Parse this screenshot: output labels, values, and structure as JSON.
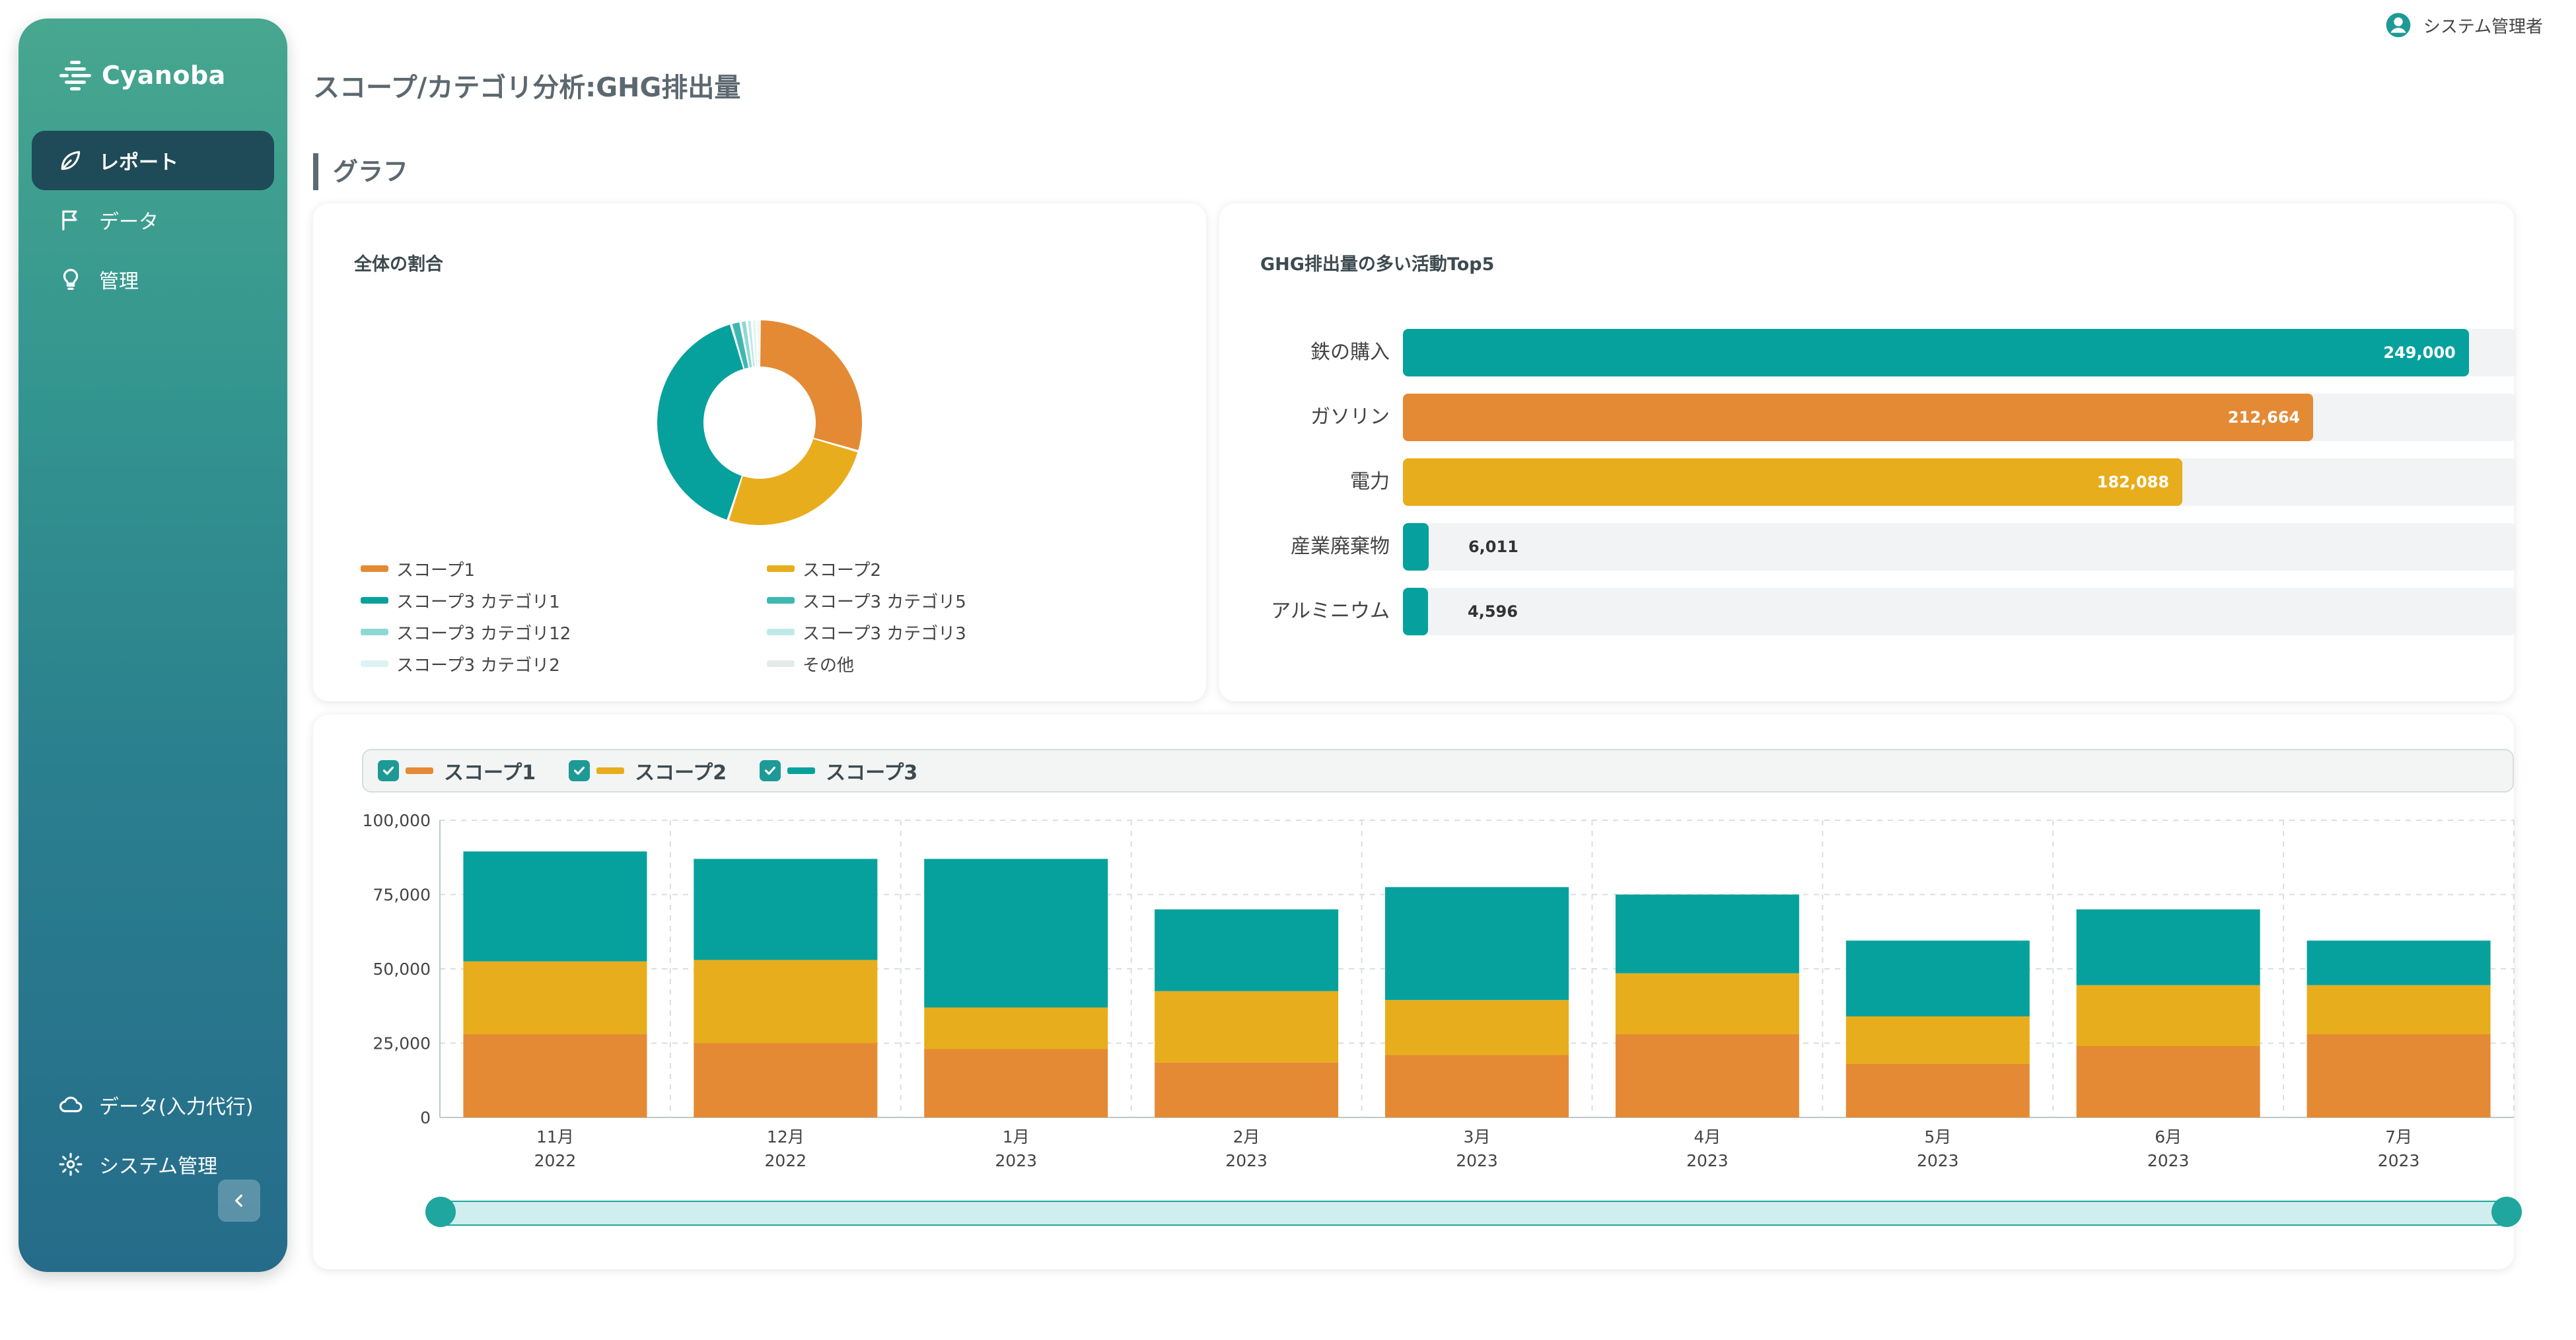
{
  "app": {
    "brand": "Cyanoba"
  },
  "header": {
    "user": "システム管理者"
  },
  "nav": {
    "items": [
      {
        "label": "レポート",
        "icon": "leaf-icon",
        "active": true
      },
      {
        "label": "データ",
        "icon": "flag-icon",
        "active": false
      },
      {
        "label": "管理",
        "icon": "lightbulb-icon",
        "active": false
      }
    ],
    "bottom": [
      {
        "label": "データ(入力代行)",
        "icon": "cloud-icon"
      },
      {
        "label": "システム管理",
        "icon": "gear-icon"
      }
    ]
  },
  "page": {
    "title": "スコープ/カテゴリ分析:GHG排出量",
    "section": "グラフ"
  },
  "donut": {
    "title": "全体の割合",
    "legend": [
      {
        "label": "スコープ1",
        "color": "#e48a35"
      },
      {
        "label": "スコープ2",
        "color": "#e8ad1c"
      },
      {
        "label": "スコープ3 カテゴリ1",
        "color": "#06a19d"
      },
      {
        "label": "スコープ3 カテゴリ5",
        "color": "#3fb8b2"
      },
      {
        "label": "スコープ3 カテゴリ12",
        "color": "#8ed8d4"
      },
      {
        "label": "スコープ3 カテゴリ3",
        "color": "#bfe9e6"
      },
      {
        "label": "スコープ3 カテゴリ2",
        "color": "#dcf3f1"
      },
      {
        "label": "その他",
        "color": "#e6eaeb"
      }
    ]
  },
  "top5": {
    "title": "GHG排出量の多い活動Top5"
  },
  "stack": {
    "legend": [
      {
        "label": "スコープ1",
        "color": "#e48a35"
      },
      {
        "label": "スコープ2",
        "color": "#e8ad1c"
      },
      {
        "label": "スコープ3",
        "color": "#06a19d"
      }
    ]
  },
  "chart_data": [
    {
      "type": "pie",
      "title": "全体の割合",
      "categories": [
        "スコープ1",
        "スコープ2",
        "スコープ3 カテゴリ1",
        "スコープ3 カテゴリ5",
        "スコープ3 カテゴリ12",
        "スコープ3 カテゴリ3",
        "スコープ3 カテゴリ2",
        "その他"
      ],
      "values": [
        29.5,
        25.5,
        40.5,
        1.5,
        1.0,
        0.8,
        0.7,
        0.5
      ],
      "colors": [
        "#e48a35",
        "#e8ad1c",
        "#06a19d",
        "#3fb8b2",
        "#8ed8d4",
        "#bfe9e6",
        "#dcf3f1",
        "#e6eaeb"
      ],
      "hole": 0.55
    },
    {
      "type": "bar",
      "orientation": "horizontal",
      "title": "GHG排出量の多い活動Top5",
      "categories": [
        "鉄の購入",
        "ガソリン",
        "電力",
        "産業廃棄物",
        "アルミニウム"
      ],
      "values": [
        249000,
        212664,
        182088,
        6011,
        4596
      ],
      "labels": [
        "249,000",
        "212,664",
        "182,088",
        "6,011",
        "4,596"
      ],
      "colors": [
        "#06a19d",
        "#e48a35",
        "#e8ad1c",
        "#06a19d",
        "#06a19d"
      ],
      "xlim": [
        0,
        260000
      ]
    },
    {
      "type": "bar",
      "stacked": true,
      "categories": [
        "11月|2022",
        "12月|2022",
        "1月|2023",
        "2月|2023",
        "3月|2023",
        "4月|2023",
        "5月|2023",
        "6月|2023",
        "7月|2023"
      ],
      "series": [
        {
          "name": "スコープ1",
          "color": "#e48a35",
          "values": [
            28000,
            25000,
            23000,
            18500,
            21000,
            28000,
            18000,
            24000,
            28000
          ]
        },
        {
          "name": "スコープ2",
          "color": "#e8ad1c",
          "values": [
            24500,
            28000,
            14000,
            24000,
            18500,
            20500,
            16000,
            20500,
            16500
          ]
        },
        {
          "name": "スコープ3",
          "color": "#06a19d",
          "values": [
            37000,
            34000,
            50000,
            27500,
            38000,
            26500,
            25500,
            25500,
            15000
          ]
        }
      ],
      "ylim": [
        0,
        100000
      ],
      "yticks": [
        "0",
        "25,000",
        "50,000",
        "75,000",
        "100,000"
      ],
      "grid": true
    }
  ]
}
